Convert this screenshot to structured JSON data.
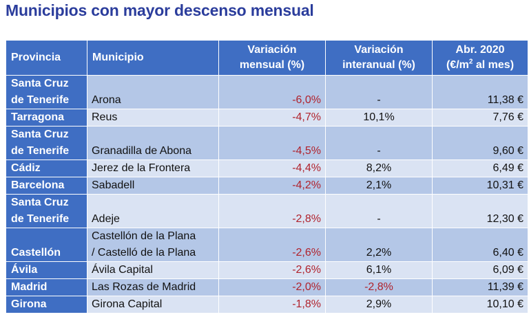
{
  "title": "Municipios con mayor descenso mensual",
  "headers": {
    "provincia": "Provincia",
    "municipio": "Municipio",
    "var_mensual_1": "Variación",
    "var_mensual_2": "mensual (%)",
    "var_interanual_1": "Variación",
    "var_interanual_2": "interanual (%)",
    "precio_1": "Abr. 2020",
    "precio_2a": "(€/m",
    "precio_sup": "2",
    "precio_2b": " al mes)"
  },
  "rows": [
    {
      "provincia_1": "Santa Cruz",
      "provincia_2": "de Tenerife",
      "municipio_1": "",
      "municipio_2": "Arona",
      "mensual": "-6,0%",
      "interanual": "-",
      "precio": "11,38 €"
    },
    {
      "provincia_1": "Tarragona",
      "municipio_2": "Reus",
      "mensual": "-4,7%",
      "interanual": "10,1%",
      "precio": "7,76 €"
    },
    {
      "provincia_1": "Santa Cruz",
      "provincia_2": "de Tenerife",
      "municipio_1": "",
      "municipio_2": "Granadilla de Abona",
      "mensual": "-4,5%",
      "interanual": "-",
      "precio": "9,60 €"
    },
    {
      "provincia_1": "Cádiz",
      "municipio_2": "Jerez de la Frontera",
      "mensual": "-4,4%",
      "interanual": "8,2%",
      "precio": "6,49 €"
    },
    {
      "provincia_1": "Barcelona",
      "municipio_2": "Sabadell",
      "mensual": "-4,2%",
      "interanual": "2,1%",
      "precio": "10,31 €"
    },
    {
      "provincia_1": "Santa Cruz",
      "provincia_2": "de Tenerife",
      "municipio_1": "",
      "municipio_2": "Adeje",
      "mensual": "-2,8%",
      "interanual": "-",
      "precio": "12,30 €"
    },
    {
      "provincia_1": "",
      "provincia_2": "Castellón",
      "municipio_1": "Castellón de la Plana",
      "municipio_2": "/ Castelló de la Plana",
      "mensual": "-2,6%",
      "interanual": "2,2%",
      "precio": "6,40 €"
    },
    {
      "provincia_1": "Ávila",
      "municipio_2": "Ávila Capital",
      "mensual": "-2,6%",
      "interanual": "6,1%",
      "precio": "6,09 €"
    },
    {
      "provincia_1": "Madrid",
      "municipio_2": "Las Rozas de Madrid",
      "mensual": "-2,0%",
      "interanual": "-2,8%",
      "precio": "11,39 €"
    },
    {
      "provincia_1": "Girona",
      "municipio_2": "Girona Capital",
      "mensual": "-1,8%",
      "interanual": "2,9%",
      "precio": "10,10 €"
    }
  ],
  "colors": {
    "title": "#2b3d9c",
    "header_bg": "#3f6ec3",
    "row_dark": "#b4c7e7",
    "row_light": "#dae3f3",
    "negative": "#b0222c"
  }
}
